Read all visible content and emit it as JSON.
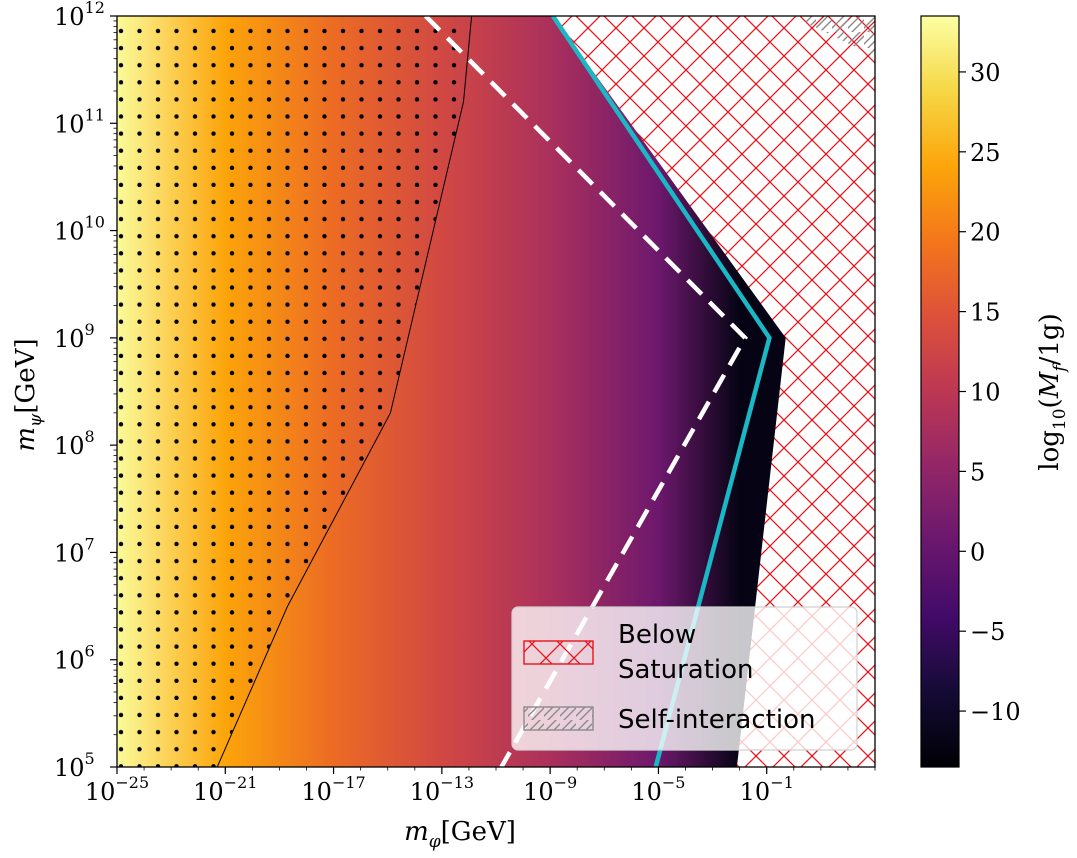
{
  "chart_data": {
    "type": "heatmap",
    "xlabel": "m_φ[GeV]",
    "ylabel": "m_ψ[GeV]",
    "colorbar_label": "log10(M_f/1g)",
    "x_scale": "log",
    "y_scale": "log",
    "x_log10_range": [
      -25,
      3
    ],
    "y_log10_range": [
      5,
      12
    ],
    "x_ticks": [
      {
        "base": "10",
        "exp": "−25"
      },
      {
        "base": "10",
        "exp": "−21"
      },
      {
        "base": "10",
        "exp": "−17"
      },
      {
        "base": "10",
        "exp": "−13"
      },
      {
        "base": "10",
        "exp": "−9"
      },
      {
        "base": "10",
        "exp": "−5"
      },
      {
        "base": "10",
        "exp": "−1"
      }
    ],
    "y_ticks": [
      {
        "base": "10",
        "exp": "5"
      },
      {
        "base": "10",
        "exp": "6"
      },
      {
        "base": "10",
        "exp": "7"
      },
      {
        "base": "10",
        "exp": "8"
      },
      {
        "base": "10",
        "exp": "9"
      },
      {
        "base": "10",
        "exp": "10"
      },
      {
        "base": "10",
        "exp": "11"
      },
      {
        "base": "10",
        "exp": "12"
      }
    ],
    "colorbar_range": [
      -13.5,
      33.5
    ],
    "colorbar_ticks": [
      "30",
      "25",
      "20",
      "15",
      "10",
      "5",
      "0",
      "−5",
      "−10"
    ],
    "colormap": "inferno",
    "color_field_log10_mphi_at_Mf": [
      {
        "log10_mphi": -25,
        "log10_Mf": 33
      },
      {
        "log10_mphi": -21,
        "log10_Mf": 24
      },
      {
        "log10_mphi": -17,
        "log10_Mf": 18
      },
      {
        "log10_mphi": -13,
        "log10_Mf": 13
      },
      {
        "log10_mphi": -9,
        "log10_Mf": 8
      },
      {
        "log10_mphi": -5,
        "log10_Mf": 1
      },
      {
        "log10_mphi": -2,
        "log10_Mf": -12
      }
    ],
    "data_edge_boundary": [
      [
        -8.9,
        12
      ],
      [
        -0.3,
        9
      ],
      [
        -2.1,
        5
      ]
    ],
    "dotted_region_boundary": [
      [
        -25,
        12
      ],
      [
        -11.9,
        12
      ],
      [
        -12.2,
        11.2
      ],
      [
        -14.9,
        8.3
      ],
      [
        -18.7,
        6.5
      ],
      [
        -21.3,
        5
      ],
      [
        -25,
        5
      ]
    ],
    "series": [
      {
        "name": "white dashed",
        "points": [
          [
            -13.6,
            12
          ],
          [
            -1.8,
            9
          ],
          [
            -10.8,
            5
          ]
        ]
      },
      {
        "name": "cyan",
        "points": [
          [
            -8.9,
            12
          ],
          [
            -0.9,
            9
          ],
          [
            -5.1,
            5
          ]
        ]
      }
    ],
    "legend": {
      "position": "lower right",
      "entries": [
        {
          "label_lines": [
            "Below",
            "Saturation"
          ],
          "hatch": "cross",
          "color": "#e8141b"
        },
        {
          "label_lines": [
            "Self-interaction"
          ],
          "hatch": "diagonal",
          "color": "#8a8a8a"
        }
      ]
    },
    "colors": {
      "below_saturation_hatch": "#e8141b",
      "self_interaction_hatch": "#8a8a8a",
      "cyan_line": "#1ab8c4",
      "dashed_line": "#ffffff"
    }
  }
}
